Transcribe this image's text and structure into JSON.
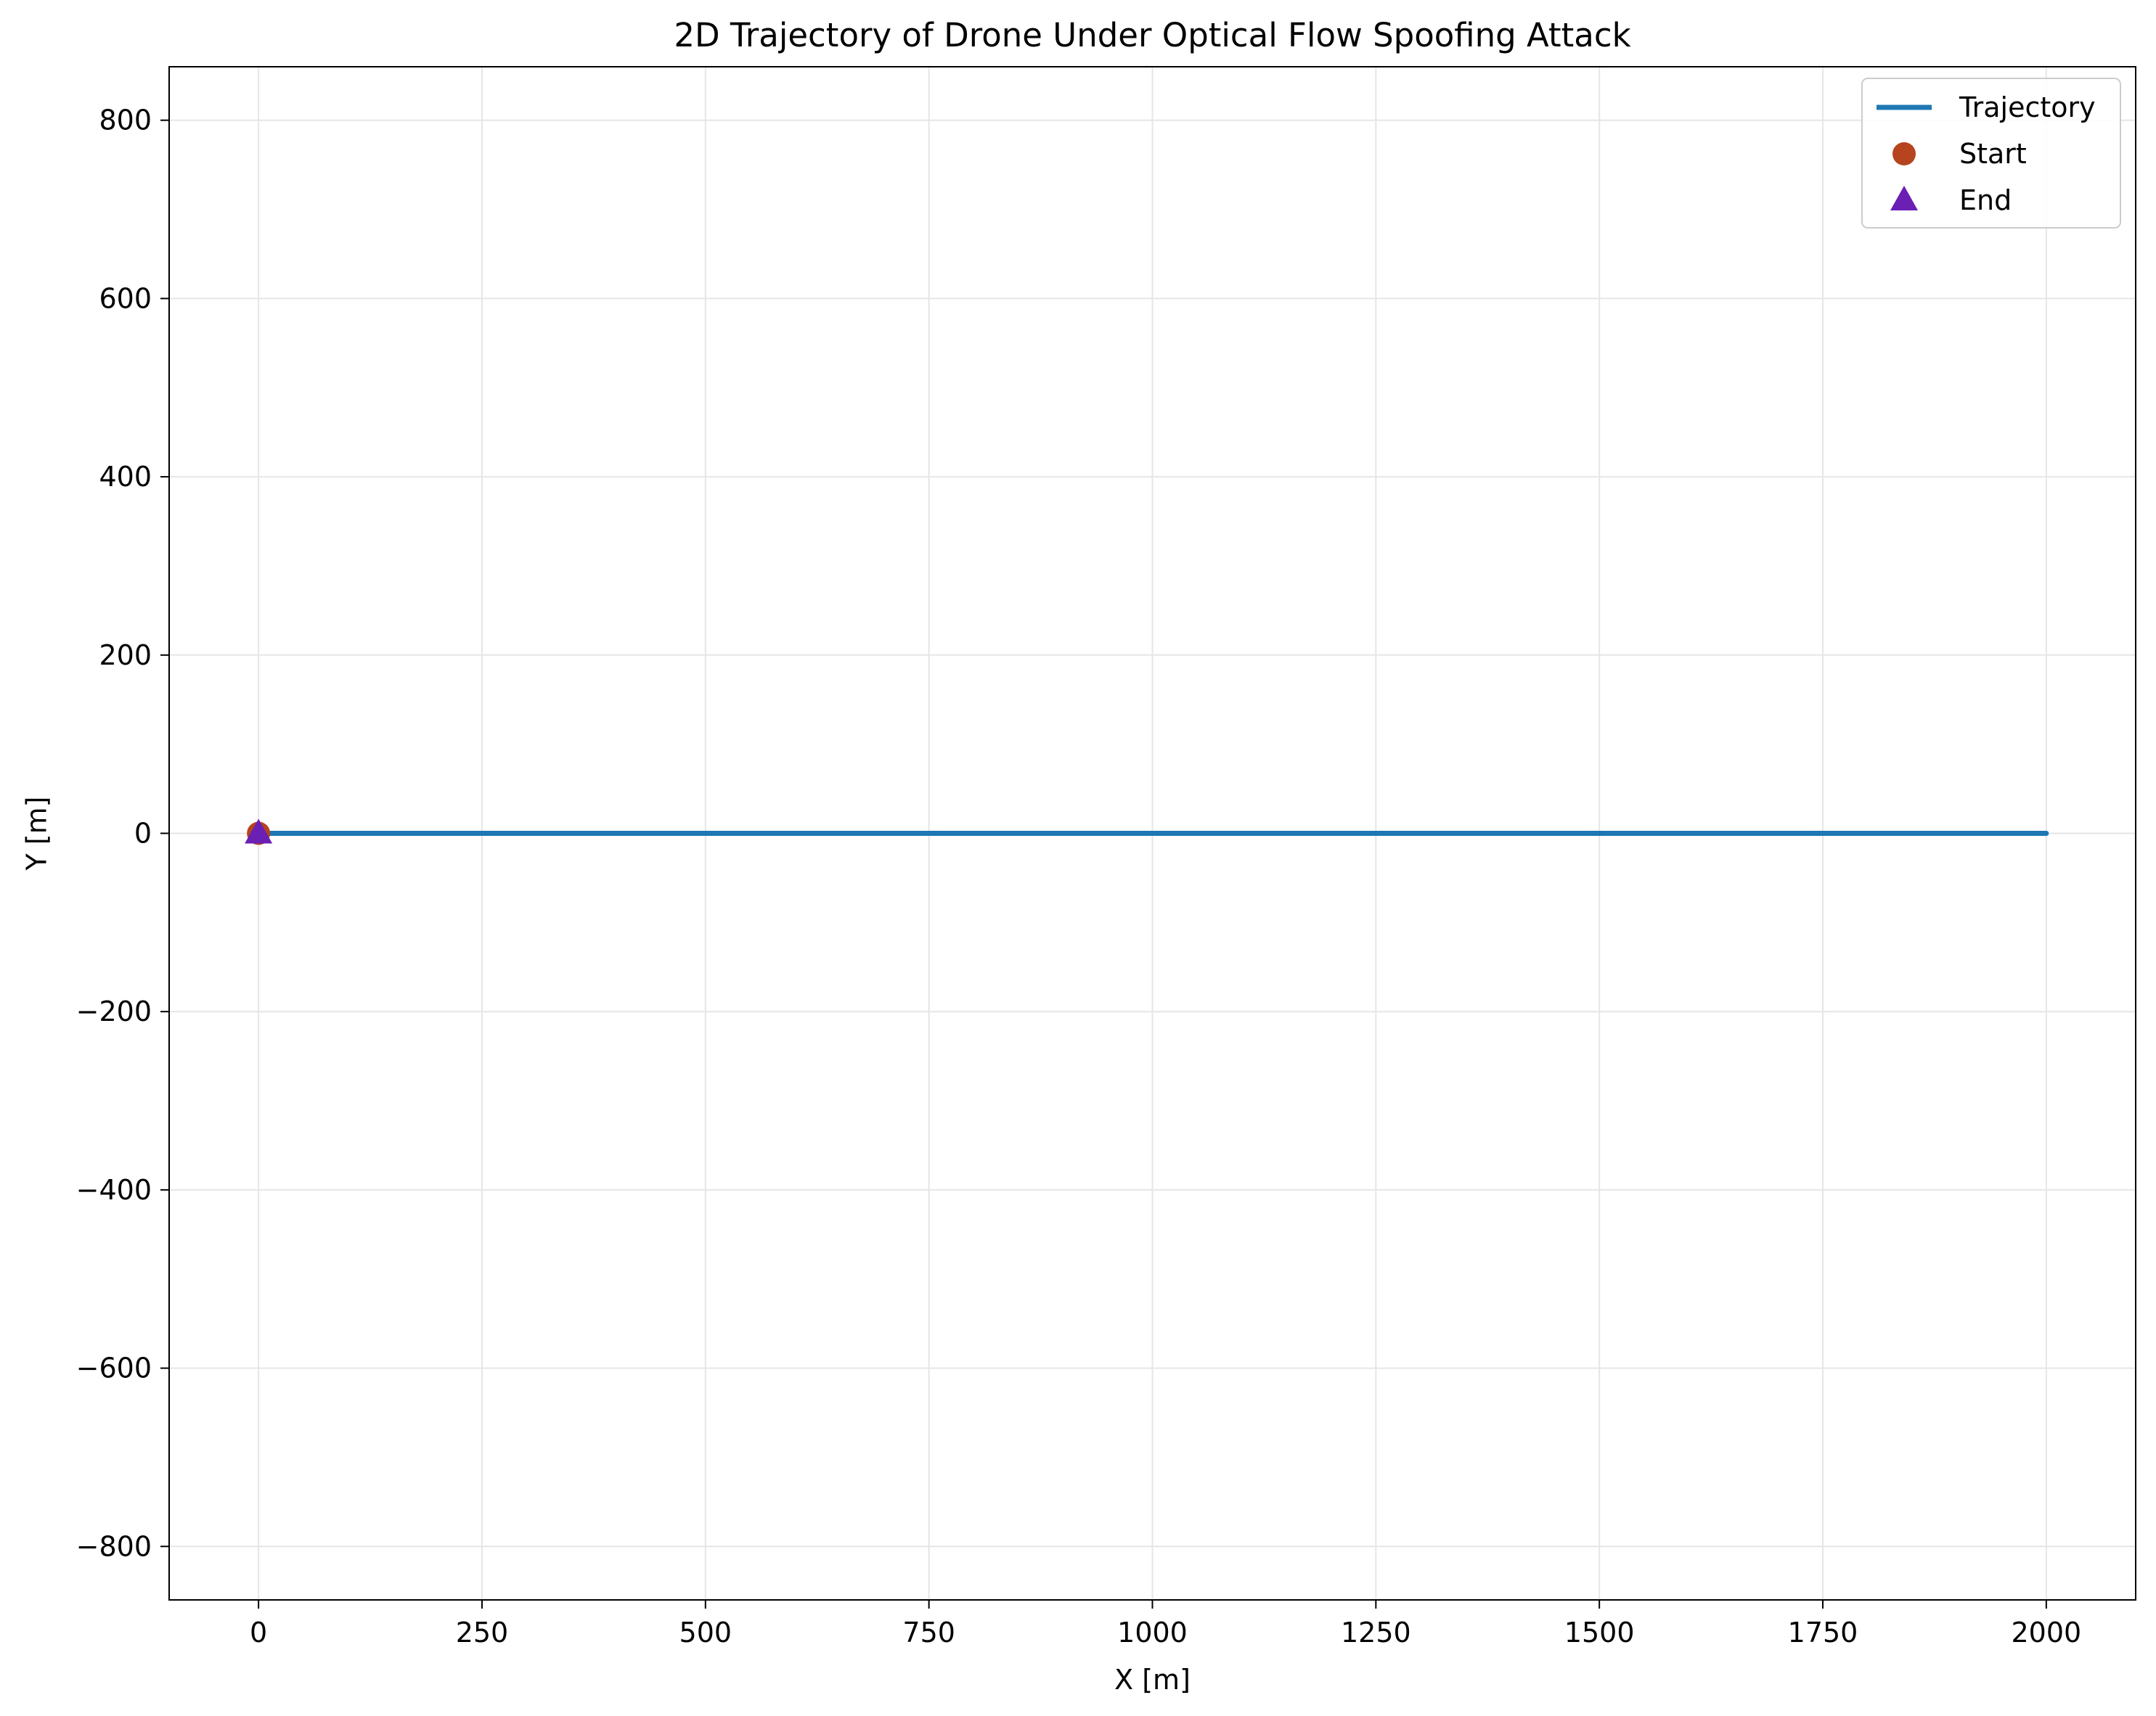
{
  "chart_data": {
    "type": "line",
    "title": "2D Trajectory of Drone Under Optical Flow Spoofing Attack",
    "xlabel": "X [m]",
    "ylabel": "Y [m]",
    "xlim": [
      -100,
      2100
    ],
    "ylim": [
      -860,
      860
    ],
    "xticks": [
      0,
      250,
      500,
      750,
      1000,
      1250,
      1500,
      1750,
      2000
    ],
    "yticks": [
      800,
      600,
      400,
      200,
      0,
      -200,
      -400,
      -600,
      -800
    ],
    "xtick_labels": [
      "0",
      "250",
      "500",
      "750",
      "1000",
      "1250",
      "1500",
      "1750",
      "2000"
    ],
    "ytick_labels": [
      "800",
      "600",
      "400",
      "200",
      "0",
      "−200",
      "−400",
      "−600",
      "−800"
    ],
    "grid": true,
    "legend_position": "top-right",
    "series": [
      {
        "name": "Trajectory",
        "kind": "line",
        "color": "#1f77b4",
        "x": [
          0,
          2000
        ],
        "y": [
          0,
          0
        ]
      },
      {
        "name": "Start",
        "kind": "marker",
        "marker": "circle",
        "color": "#b5441f",
        "x": [
          0
        ],
        "y": [
          0
        ]
      },
      {
        "name": "End",
        "kind": "marker",
        "marker": "triangle",
        "color": "#6a1fb5",
        "x": [
          0
        ],
        "y": [
          0
        ]
      }
    ]
  }
}
